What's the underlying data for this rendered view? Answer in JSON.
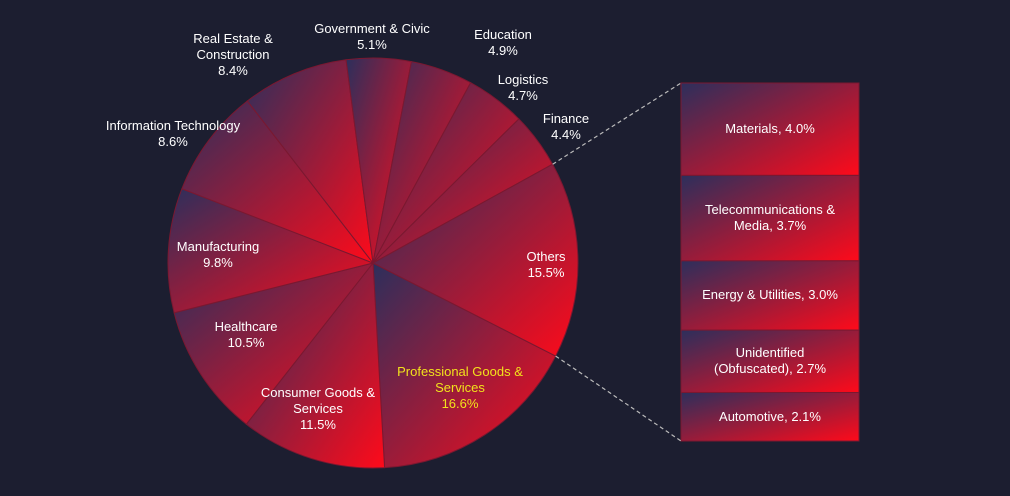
{
  "chart_data": {
    "type": "pie-of-bar",
    "categories": [
      "Professional Goods & Services",
      "Consumer Goods & Services",
      "Healthcare",
      "Manufacturing",
      "Information Technology",
      "Real Estate & Construction",
      "Government & Civic",
      "Education",
      "Logistics",
      "Finance",
      "Others"
    ],
    "values": [
      16.6,
      11.5,
      10.5,
      9.8,
      8.6,
      8.4,
      5.1,
      4.9,
      4.7,
      4.4,
      15.5
    ],
    "value_labels": [
      "16.6%",
      "11.5%",
      "10.5%",
      "9.8%",
      "8.6%",
      "8.4%",
      "5.1%",
      "4.9%",
      "4.7%",
      "4.4%",
      "15.5%"
    ],
    "breakdown": {
      "categories": [
        "Materials",
        "Telecommunications & Media",
        "Energy & Utilities",
        "Unidentified (Obfuscated)",
        "Automotive"
      ],
      "values": [
        4.0,
        3.7,
        3.0,
        2.7,
        2.1
      ],
      "value_labels": [
        "4.0%",
        "3.7%",
        "3.0%",
        "2.7%",
        "2.1%"
      ]
    },
    "gradient": [
      "#2c2f5c",
      "#ff0a1a"
    ],
    "label_color": "#ffffff",
    "highlight": "Professional Goods & Services",
    "highlight_color": "#f2e21c",
    "background": "#1c1e30"
  }
}
